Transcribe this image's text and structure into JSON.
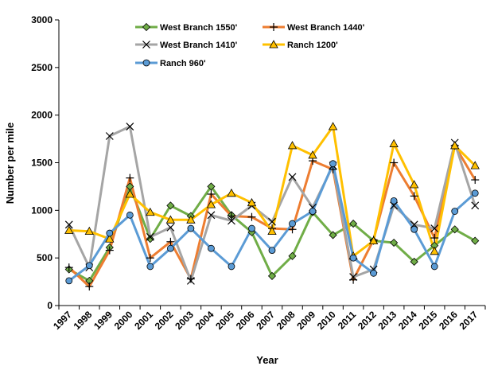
{
  "chart_data": {
    "type": "line",
    "title": "",
    "xlabel": "Year",
    "ylabel": "Number per mile",
    "ylim": [
      0,
      3000
    ],
    "yticks": [
      0,
      500,
      1000,
      1500,
      2000,
      2500,
      3000
    ],
    "grid": false,
    "legend": "top",
    "categories": [
      "1997",
      "1998",
      "1999",
      "2000",
      "2001",
      "2002",
      "2003",
      "2004",
      "2005",
      "2006",
      "2007",
      "2008",
      "2009",
      "2010",
      "2011",
      "2012",
      "2013",
      "2014",
      "2015",
      "2016",
      "2017"
    ],
    "series": [
      {
        "name": "West Branch 1550'",
        "color": "#70AD47",
        "marker": "diamond",
        "marker_fill": "#70AD47",
        "values": [
          380,
          260,
          610,
          1250,
          700,
          1050,
          940,
          1250,
          950,
          770,
          310,
          520,
          980,
          740,
          860,
          680,
          660,
          460,
          630,
          800,
          680
        ]
      },
      {
        "name": "West Branch 1440'",
        "color": "#ED7D31",
        "marker": "plus",
        "marker_fill": "#000000",
        "values": [
          400,
          200,
          580,
          1340,
          500,
          670,
          280,
          1170,
          940,
          930,
          810,
          800,
          1520,
          1430,
          270,
          690,
          1500,
          1150,
          710,
          1680,
          1320
        ]
      },
      {
        "name": "West Branch 1410'",
        "color": "#A5A5A5",
        "marker": "x",
        "marker_fill": "#000000",
        "values": [
          850,
          400,
          1780,
          1880,
          720,
          820,
          260,
          950,
          890,
          1050,
          880,
          1350,
          1030,
          1470,
          300,
          380,
          1050,
          850,
          810,
          1710,
          1050
        ]
      },
      {
        "name": "Ranch 1200'",
        "color": "#FFC000",
        "marker": "triangle",
        "marker_fill": "#FFC000",
        "values": [
          790,
          780,
          700,
          1170,
          980,
          900,
          900,
          1060,
          1180,
          1080,
          780,
          1680,
          1580,
          1880,
          520,
          680,
          1700,
          1270,
          570,
          1680,
          1470
        ]
      },
      {
        "name": "Ranch 960'",
        "color": "#5B9BD5",
        "marker": "circle",
        "marker_fill": "#5B9BD5",
        "values": [
          260,
          420,
          760,
          950,
          410,
          600,
          810,
          600,
          410,
          810,
          580,
          860,
          990,
          1490,
          500,
          340,
          1100,
          800,
          410,
          990,
          1180
        ]
      }
    ]
  }
}
